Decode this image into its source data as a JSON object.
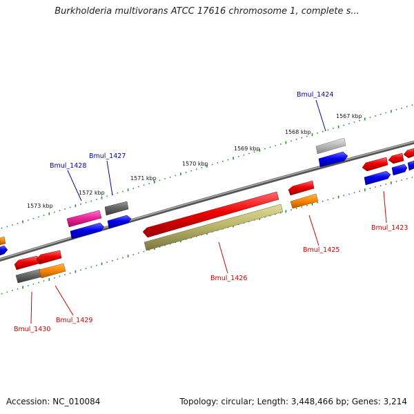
{
  "title": "Burkholderia multivorans ATCC 17616 chromosome 1, complete s...",
  "footer": {
    "accession": "Accession: NC_010084",
    "stats": "Topology: circular; Length: 3,448,466 bp; Genes: 3,214"
  },
  "colors": {
    "backbone": "#7a7a7a",
    "tick": "#2f8a2f",
    "label_forward": "#0000aa",
    "label_reverse": "#cc0000"
  },
  "kbp_labels": [
    "1567 kbp",
    "1568 kbp",
    "1569 kbp",
    "1570 kbp",
    "1571 kbp",
    "1572 kbp",
    "1573 kbp"
  ],
  "gene_labels": [
    "Bmul_1424",
    "Bmul_1427",
    "Bmul_1428",
    "Bmul_1423",
    "Bmul_1425",
    "Bmul_1426",
    "Bmul_1429",
    "Bmul_1430"
  ]
}
